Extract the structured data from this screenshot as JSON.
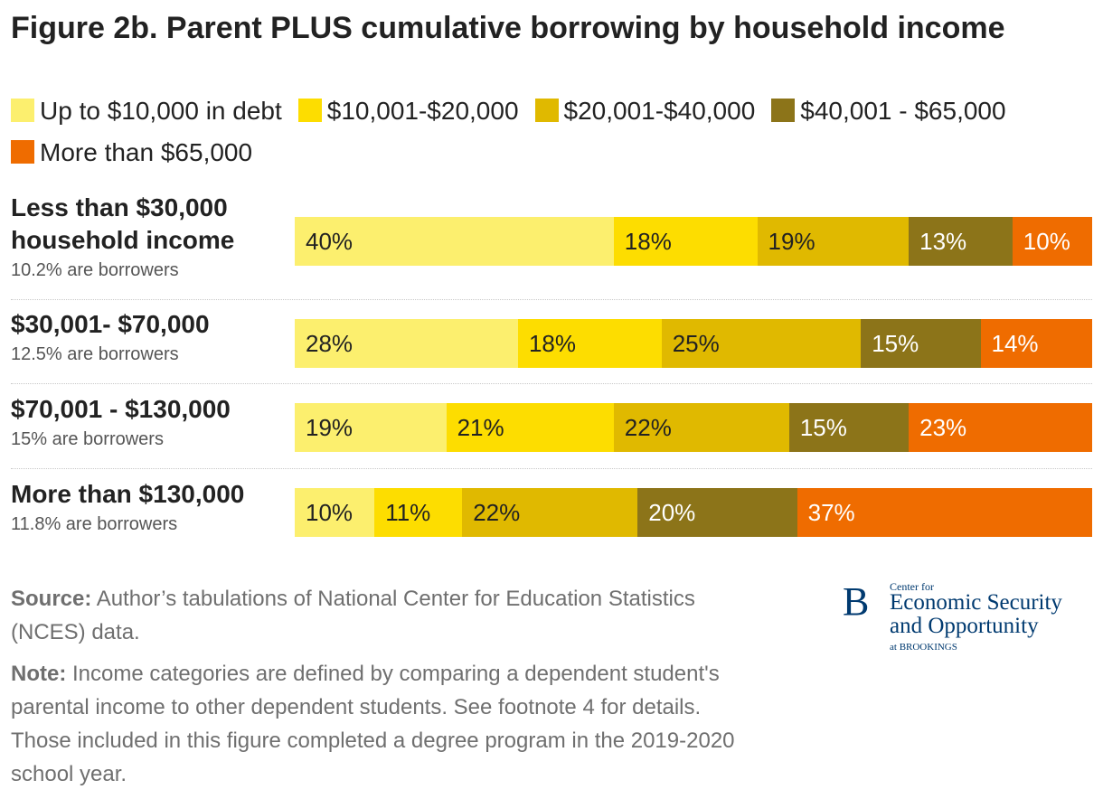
{
  "title": "Figure 2b. Parent PLUS cumulative borrowing by household income",
  "colors": {
    "up_to_10k": "#fcef6e",
    "10k_20k": "#fddd00",
    "20k_40k": "#e0b900",
    "40k_65k": "#8c7419",
    "more_65k": "#ef6c00"
  },
  "chart_data": {
    "type": "bar",
    "orientation": "horizontal",
    "stacked": true,
    "title": "Figure 2b. Parent PLUS cumulative borrowing by household income",
    "legend": [
      "Up to $10,000 in debt",
      "$10,001-$20,000",
      "$20,001-$40,000",
      "$40,001 - $65,000",
      "More than $65,000"
    ],
    "categories": [
      "Less than $30,000 household income",
      "$30,001- $70,000",
      "$70,001 - $130,000",
      "More than $130,000"
    ],
    "subtitles": [
      "10.2% are borrowers",
      "12.5% are borrowers",
      "15% are borrowers",
      "11.8% are borrowers"
    ],
    "series": [
      {
        "name": "Up to $10,000 in debt",
        "values": [
          40,
          28,
          19,
          10
        ]
      },
      {
        "name": "$10,001-$20,000",
        "values": [
          18,
          18,
          21,
          11
        ]
      },
      {
        "name": "$20,001-$40,000",
        "values": [
          19,
          25,
          22,
          22
        ]
      },
      {
        "name": "$40,001 - $65,000",
        "values": [
          13,
          15,
          15,
          20
        ]
      },
      {
        "name": "More than $65,000",
        "values": [
          10,
          14,
          23,
          37
        ]
      }
    ],
    "unit": "%",
    "xlim": [
      0,
      100
    ]
  },
  "footer": {
    "source_label": "Source:",
    "source_text": "Author’s tabulations of National Center for Education Statistics (NCES) data.",
    "note_label": "Note:",
    "note_text": "Income categories are defined by comparing a dependent student's parental income to other dependent students. See footnote 4 for details. Those included in this figure completed a degree program in the 2019-2020 school year."
  },
  "logo": {
    "mark": "B",
    "small": "Center for",
    "big": "Economic Security and Opportunity",
    "tiny": "at BROOKINGS"
  }
}
